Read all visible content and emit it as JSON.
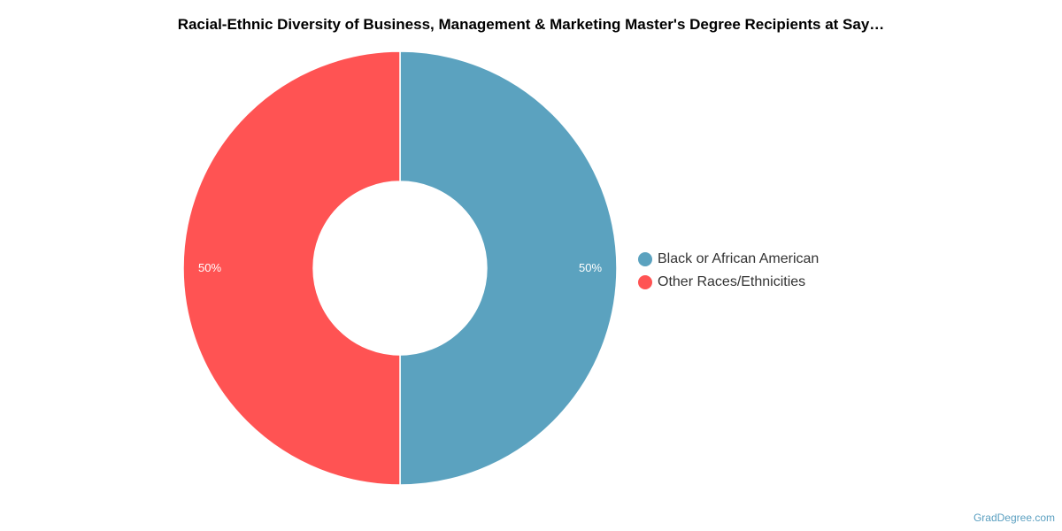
{
  "chart_data": {
    "type": "pie",
    "variant": "donut",
    "title": "Racial-Ethnic Diversity of Business, Management & Marketing Master's Degree Recipients at Say…",
    "legend_position": "right",
    "slices": [
      {
        "label": "Black or African American",
        "value": 50,
        "value_label": "50%",
        "color": "#5ba2bf"
      },
      {
        "label": "Other Races/Ethnicities",
        "value": 50,
        "value_label": "50%",
        "color": "#ff5353"
      }
    ]
  },
  "footer": {
    "credit": "GradDegree.com"
  }
}
